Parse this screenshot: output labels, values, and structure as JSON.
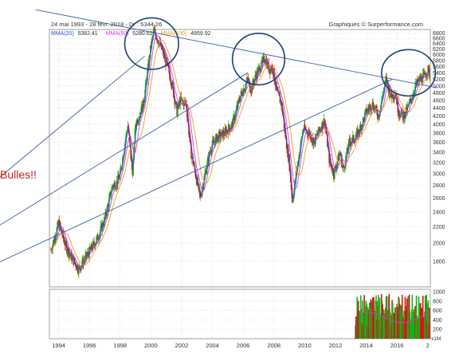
{
  "header": {
    "range_text": "24 mai 1993 - 28 févr. 2018 - Dr : 5344.26",
    "source_text": "Graphiques © Surperformance.com"
  },
  "legend": [
    {
      "label": "MMA(20)",
      "value": "5382.41",
      "color": "#2b55d6"
    },
    {
      "label": "MMA(50)",
      "value": "5280.62",
      "color": "#d63bd6"
    },
    {
      "label": "MMA(100)",
      "value": "4959.92",
      "color": "#f0a020"
    }
  ],
  "annotation": {
    "text": "Bulles!!",
    "color": "#d21e1e"
  },
  "colors": {
    "up": "#18b018",
    "down": "#d01818",
    "trend": "#3a5ea8",
    "circle": "#1f3f7a",
    "grid": "#c8c8c8"
  },
  "chart_data": {
    "type": "candlestick",
    "title": "",
    "xlabel": "",
    "ylabel": "",
    "x_ticks": [
      "1994",
      "1996",
      "1998",
      "2000",
      "2002",
      "2004",
      "2006",
      "2008",
      "2010",
      "2012",
      "2014",
      "2016",
      "2"
    ],
    "y_ticks": [
      1800,
      2000,
      2200,
      2400,
      2600,
      2800,
      3000,
      3200,
      3400,
      3600,
      3800,
      4000,
      4200,
      4400,
      4600,
      4800,
      5000,
      5200,
      5400,
      5600,
      5800,
      6000,
      6200,
      6400,
      6600,
      6800
    ],
    "ylim": [
      1550,
      6950
    ],
    "xlim": [
      1993.4,
      2018.17
    ],
    "log_scale": true,
    "price_series": [
      [
        1993.5,
        1920
      ],
      [
        1994.0,
        2250
      ],
      [
        1994.5,
        1950
      ],
      [
        1995.0,
        1800
      ],
      [
        1995.3,
        1720
      ],
      [
        1995.8,
        1850
      ],
      [
        1996.0,
        1900
      ],
      [
        1996.5,
        2050
      ],
      [
        1997.0,
        2300
      ],
      [
        1997.5,
        2800
      ],
      [
        1997.8,
        2850
      ],
      [
        1998.0,
        3000
      ],
      [
        1998.5,
        4000
      ],
      [
        1998.8,
        3000
      ],
      [
        1999.0,
        4000
      ],
      [
        1999.5,
        4500
      ],
      [
        1999.8,
        5500
      ],
      [
        2000.0,
        6300
      ],
      [
        2000.2,
        6900
      ],
      [
        2000.5,
        6500
      ],
      [
        2000.9,
        5900
      ],
      [
        2001.3,
        5200
      ],
      [
        2001.7,
        4300
      ],
      [
        2001.9,
        4600
      ],
      [
        2002.3,
        4500
      ],
      [
        2002.6,
        3400
      ],
      [
        2002.9,
        3000
      ],
      [
        2003.2,
        2600
      ],
      [
        2003.6,
        3100
      ],
      [
        2003.9,
        3500
      ],
      [
        2004.3,
        3700
      ],
      [
        2004.8,
        3800
      ],
      [
        2005.3,
        4000
      ],
      [
        2005.8,
        4700
      ],
      [
        2006.3,
        5200
      ],
      [
        2006.5,
        4900
      ],
      [
        2006.9,
        5400
      ],
      [
        2007.2,
        5650
      ],
      [
        2007.4,
        5900
      ],
      [
        2007.7,
        5500
      ],
      [
        2007.9,
        5600
      ],
      [
        2008.2,
        4800
      ],
      [
        2008.5,
        4500
      ],
      [
        2008.8,
        3600
      ],
      [
        2009.0,
        3200
      ],
      [
        2009.2,
        2550
      ],
      [
        2009.5,
        3100
      ],
      [
        2009.9,
        3900
      ],
      [
        2010.3,
        3800
      ],
      [
        2010.6,
        3600
      ],
      [
        2011.0,
        3900
      ],
      [
        2011.3,
        4100
      ],
      [
        2011.6,
        3250
      ],
      [
        2011.9,
        3000
      ],
      [
        2012.3,
        3400
      ],
      [
        2012.5,
        3050
      ],
      [
        2012.9,
        3600
      ],
      [
        2013.3,
        3700
      ],
      [
        2013.6,
        3900
      ],
      [
        2014.0,
        4300
      ],
      [
        2014.4,
        4500
      ],
      [
        2014.8,
        4200
      ],
      [
        2015.1,
        4800
      ],
      [
        2015.3,
        5200
      ],
      [
        2015.6,
        4700
      ],
      [
        2015.9,
        4800
      ],
      [
        2016.1,
        4300
      ],
      [
        2016.5,
        4200
      ],
      [
        2016.9,
        4600
      ],
      [
        2017.2,
        5000
      ],
      [
        2017.5,
        5200
      ],
      [
        2017.8,
        5300
      ],
      [
        2018.0,
        5500
      ],
      [
        2018.15,
        5344
      ]
    ],
    "volume_ticks": [
      200,
      400,
      600,
      800,
      1000
    ],
    "volume_unit": "x1M",
    "volume_start": 2013.3
  },
  "trendlines": [
    {
      "name": "resistance",
      "from": [
        1992.5,
        7800
      ],
      "to": [
        2018.6,
        4950
      ]
    },
    {
      "name": "support-1",
      "from": [
        1990.0,
        2900
      ],
      "to": [
        1999.6,
        5950
      ]
    },
    {
      "name": "support-2",
      "from": [
        1990.0,
        2200
      ],
      "to": [
        2006.3,
        5400
      ]
    },
    {
      "name": "support-3",
      "from": [
        1990.0,
        1780
      ],
      "to": [
        2015.7,
        5200
      ]
    }
  ],
  "circles": [
    {
      "cx": 2000.05,
      "cy": 6400,
      "rx": 1.75,
      "ry_frac": 0.1
    },
    {
      "cx": 2007.0,
      "cy": 5850,
      "rx": 1.7,
      "ry_frac": 0.1
    },
    {
      "cx": 2016.75,
      "cy": 5400,
      "rx": 1.75,
      "ry_frac": 0.09
    }
  ]
}
